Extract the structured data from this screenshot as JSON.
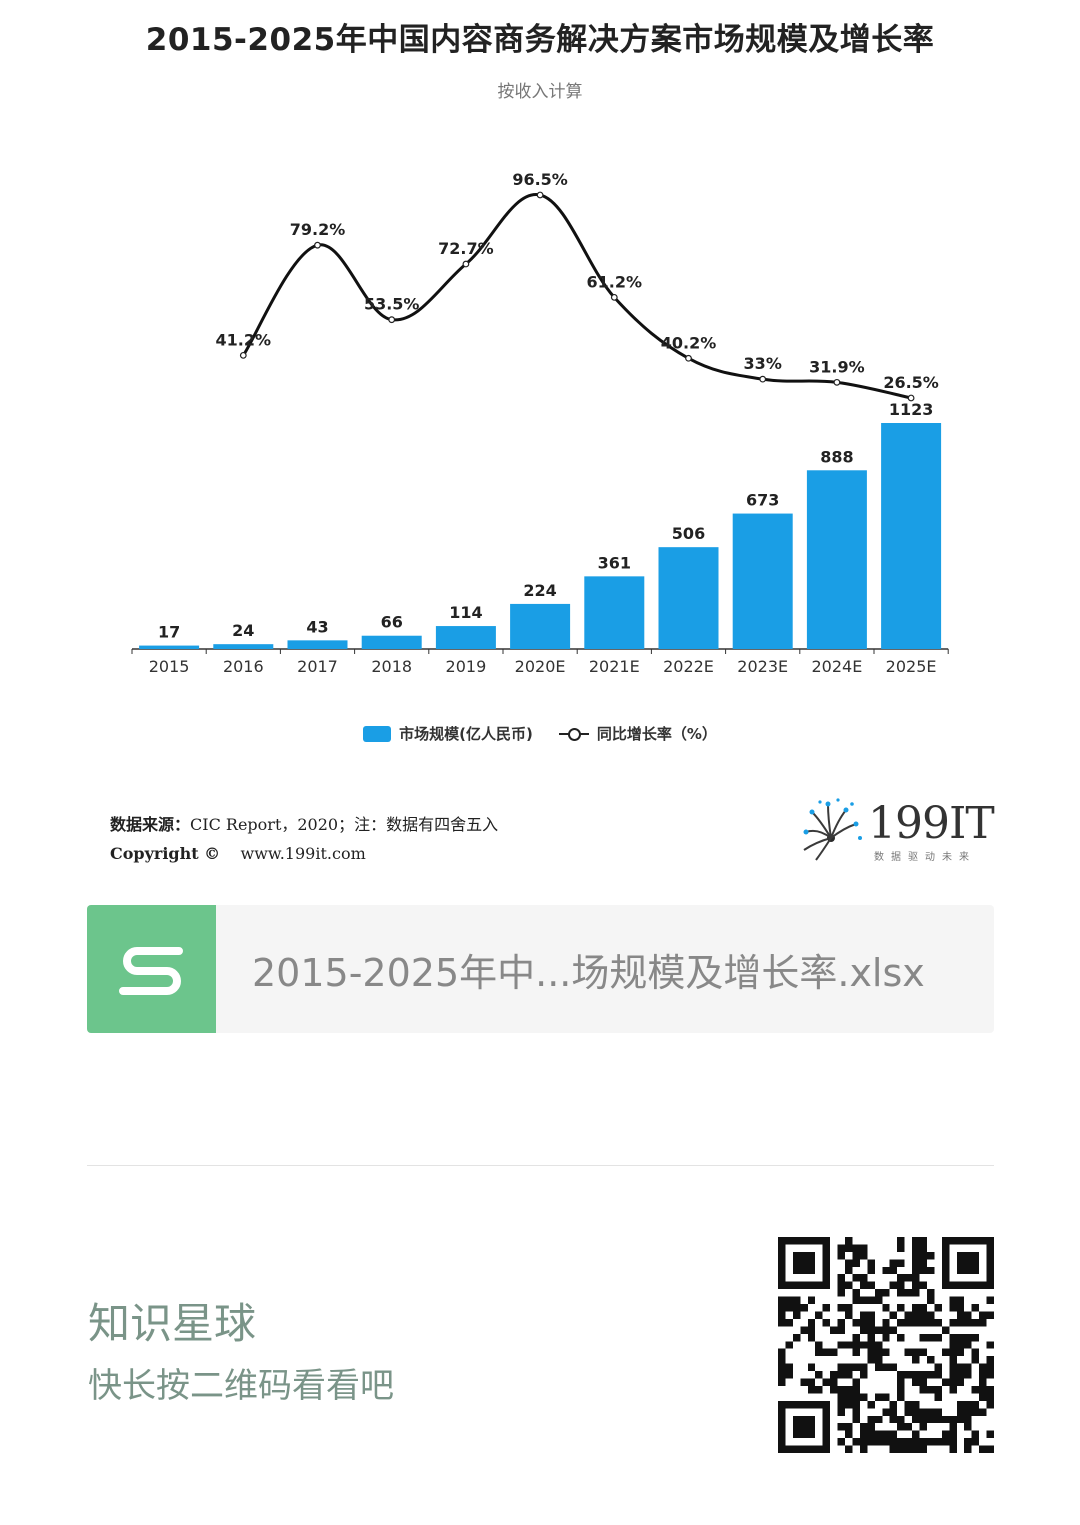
{
  "chart_data": {
    "type": "bar",
    "title": "2015-2025年中国内容商务解决方案市场规模及增长率",
    "subtitle": "按收入计算",
    "categories": [
      "2015",
      "2016",
      "2017",
      "2018",
      "2019",
      "2020E",
      "2021E",
      "2022E",
      "2023E",
      "2024E",
      "2025E"
    ],
    "series": [
      {
        "name": "市场规模(亿人民币)",
        "type": "bar",
        "color": "#1a9ee5",
        "values": [
          17,
          24,
          43,
          66,
          114,
          224,
          361,
          506,
          673,
          888,
          1123
        ]
      },
      {
        "name": "同比增长率（%）",
        "type": "line",
        "color": "#111111",
        "values": [
          null,
          41.2,
          79.2,
          53.5,
          72.7,
          96.5,
          61.2,
          40.2,
          33,
          31.9,
          26.5
        ],
        "labels": [
          null,
          "41.2%",
          "79.2%",
          "53.5%",
          "72.7%",
          "96.5%",
          "61.2%",
          "40.2%",
          "33%",
          "31.9%",
          "26.5%"
        ]
      }
    ],
    "bar_value_labels": [
      "17",
      "24",
      "43",
      "66",
      "114",
      "224",
      "361",
      "506",
      "673",
      "888",
      "1123"
    ],
    "legend": "bottom-center",
    "grid": false
  },
  "source": {
    "line1_label": "数据来源：",
    "line1_text": "CIC Report，2020；注：数据有四舍五入",
    "line2_label": "Copyright ©",
    "line2_text": "www.199it.com"
  },
  "logo": {
    "text": "199IT",
    "tagline": "数据驱动未来"
  },
  "file_card": {
    "icon": "spreadsheet-s-icon",
    "filename": "2015-2025年中...场规模及增长率.xlsx"
  },
  "promo": {
    "title": "知识星球",
    "subtitle": "快长按二维码看看吧"
  },
  "qr": {
    "icon": "qr-code-icon"
  }
}
